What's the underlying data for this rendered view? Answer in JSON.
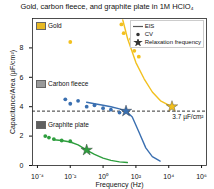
{
  "chart_data": {
    "type": "scatter",
    "title": "Gold, carbon fleece, and graphite plate in 1M HClO₄",
    "x_label": "Frequency (Hz)",
    "y_label": "Capacitance/Area (μF/cm²)",
    "log": "x",
    "grid": false,
    "legend": "upper right",
    "xlim": [
      5e-05,
      2000000
    ],
    "xticks": [
      {
        "value": 0.0001,
        "label": "10⁻⁴"
      },
      {
        "value": 0.01,
        "label": "10⁻²"
      },
      {
        "value": 1,
        "label": "10⁰"
      },
      {
        "value": 100,
        "label": "10²"
      },
      {
        "value": 10000,
        "label": "10⁴"
      },
      {
        "value": 1000000,
        "label": "10⁶"
      }
    ],
    "ylim": [
      0,
      10
    ],
    "yticks": [
      0,
      2,
      4,
      6,
      8
    ],
    "reference_line": {
      "value": 3.7,
      "label": "3.7 µF/cm²",
      "line_style": "dashed",
      "color": "#000000"
    },
    "series": [
      {
        "name": "EIS",
        "group": "Gold",
        "type": "line",
        "color": "#f2c01e",
        "x": [
          15.8,
          31.6,
          100,
          316,
          1000,
          3162,
          10000,
          15800
        ],
        "values": [
          9.9,
          8.6,
          7.0,
          5.9,
          5.0,
          4.4,
          4.1,
          4.0
        ]
      },
      {
        "name": "CV",
        "group": "Gold",
        "type": "scatter",
        "marker": "circle",
        "color": "#f2c01e",
        "x": [
          0.01,
          13,
          18,
          50,
          80,
          150
        ],
        "values": [
          8.4,
          9.6,
          9.0,
          8.6,
          7.8,
          7.4
        ]
      },
      {
        "name": "Relaxation frequency",
        "group": "Gold",
        "type": "scatter",
        "marker": "star",
        "color": "#f2c01e",
        "x": [
          15800
        ],
        "values": [
          4.0
        ]
      },
      {
        "name": "EIS",
        "group": "Carbon fleece",
        "type": "line",
        "color": "#3a6fb0",
        "x": [
          0.1,
          0.3,
          1,
          3,
          10,
          25,
          60,
          150,
          400,
          1000,
          3000
        ],
        "values": [
          4.3,
          4.2,
          4.1,
          4.0,
          3.85,
          3.7,
          3.3,
          2.3,
          1.2,
          0.6,
          0.3
        ]
      },
      {
        "name": "CV",
        "group": "Carbon fleece",
        "type": "scatter",
        "marker": "circle",
        "color": "#3a6fb0",
        "x": [
          0.005,
          0.01,
          0.03,
          0.1,
          0.3,
          1,
          3,
          10
        ],
        "values": [
          4.5,
          4.2,
          4.4,
          4.0,
          4.1,
          3.9,
          3.8,
          3.6
        ]
      },
      {
        "name": "Relaxation frequency",
        "group": "Carbon fleece",
        "type": "scatter",
        "marker": "star",
        "color": "#3a6fb0",
        "x": [
          25
        ],
        "values": [
          3.7
        ]
      },
      {
        "name": "EIS",
        "group": "Graphite plate",
        "type": "line",
        "color": "#2e9e3e",
        "x": [
          0.001,
          0.003,
          0.01,
          0.03,
          0.06,
          0.1,
          0.3,
          1,
          3,
          10,
          30
        ],
        "values": [
          1.75,
          1.7,
          1.6,
          1.4,
          1.2,
          1.05,
          0.75,
          0.5,
          0.35,
          0.25,
          0.2
        ]
      },
      {
        "name": "CV",
        "group": "Graphite plate",
        "type": "scatter",
        "marker": "circle",
        "color": "#2e9e3e",
        "x": [
          0.0003,
          0.0005,
          0.001,
          0.003,
          0.01
        ],
        "values": [
          2.0,
          1.9,
          1.8,
          1.7,
          1.65
        ]
      },
      {
        "name": "Relaxation frequency",
        "group": "Graphite plate",
        "type": "scatter",
        "marker": "star",
        "color": "#2e9e3e",
        "x": [
          0.1
        ],
        "values": [
          1.05
        ]
      }
    ]
  }
}
